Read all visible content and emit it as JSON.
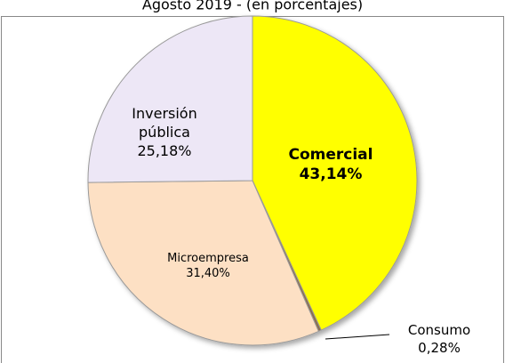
{
  "chart_data": {
    "type": "pie",
    "title": "Agosto 2019 - (en porcentajes)",
    "categories": [
      "Comercial",
      "Consumo",
      "Microempresa",
      "Inversión pública"
    ],
    "values": [
      43.14,
      0.28,
      31.4,
      25.18
    ],
    "value_labels": [
      "43,14%",
      "0,28%",
      "31,40%",
      "25,18%"
    ],
    "colors": [
      "#ffff00",
      "#8c6d4f",
      "#fde0c4",
      "#ede7f6"
    ]
  }
}
